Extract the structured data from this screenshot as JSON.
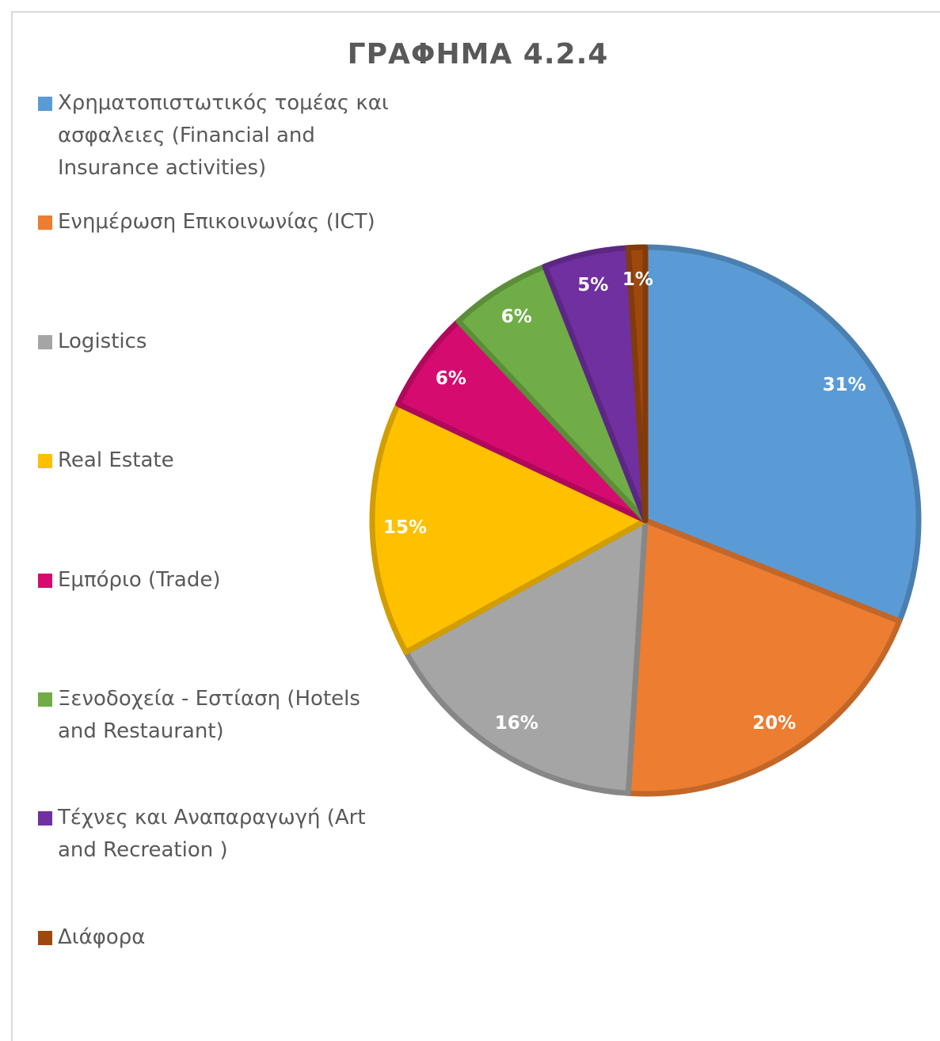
{
  "chart_data": {
    "type": "pie",
    "title": "ΓΡΑΦΗΜΑ 4.2.4",
    "categories": [
      "Χρηματοπιστωτικός τομέας και ασφαλειες (Financial and Insurance activities)",
      "Ενημέρωση Επικοινωνίας (ICT)",
      "Logistics",
      "Real Estate",
      "Εμπόριο (Trade)",
      "Ξενοδοχεία - Εστίαση (Hotels and Restaurant)",
      "Τέχνες και Αναπαραγωγή (Art and Recreation )",
      "Διάφορα"
    ],
    "values": [
      31,
      20,
      16,
      15,
      6,
      6,
      5,
      1
    ],
    "value_labels": [
      "31%",
      "20%",
      "16%",
      "15%",
      "6%",
      "6%",
      "5%",
      "1%"
    ],
    "colors": [
      "#5b9bd5",
      "#ed7d31",
      "#a5a5a5",
      "#ffc000",
      "#d60b6f",
      "#70ad47",
      "#7030a0",
      "#9e480e"
    ],
    "legend": "left"
  }
}
